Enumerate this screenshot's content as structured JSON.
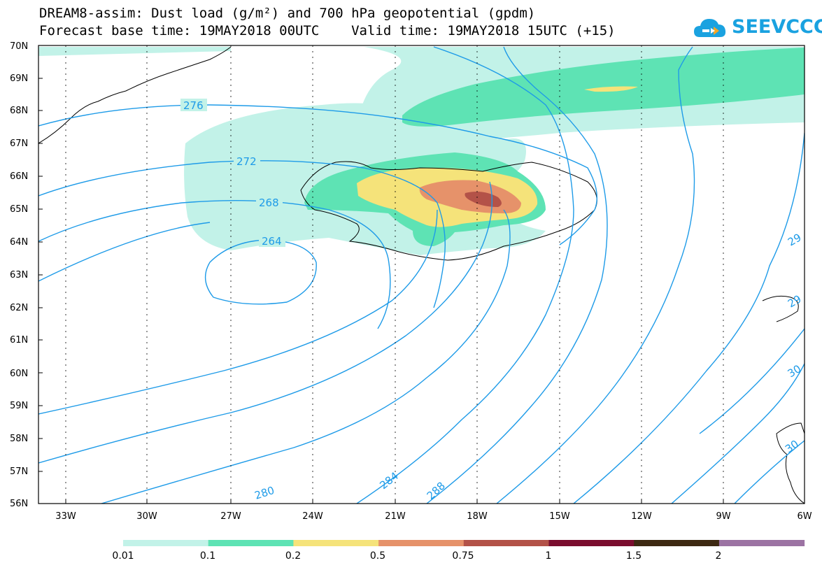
{
  "header": {
    "title_line1": "DREAM8-assim: Dust load (g/m²) and 700 hPa geopotential (gpdm)",
    "title_line2": "Forecast base time: 19MAY2018 00UTC    Valid time: 19MAY2018 15UTC (+15)"
  },
  "logo": {
    "text": "SEEVCCC",
    "icon": "cloud-logo-icon",
    "color": "#1aa2e0"
  },
  "chart_data": {
    "type": "heatmap",
    "title": "DREAM8-assim: Dust load (g/m²) and 700 hPa geopotential (gpdm)",
    "x_axis": {
      "ticks": [
        "33W",
        "30W",
        "27W",
        "24W",
        "21W",
        "18W",
        "15W",
        "12W",
        "9W",
        "6W"
      ],
      "tick_values": [
        -33,
        -30,
        -27,
        -24,
        -21,
        -18,
        -15,
        -12,
        -9,
        -6
      ],
      "range": [
        -34.3,
        -6
      ]
    },
    "y_axis": {
      "ticks": [
        "70N",
        "69N",
        "68N",
        "67N",
        "66N",
        "65N",
        "64N",
        "63N",
        "62N",
        "61N",
        "60N",
        "59N",
        "58N",
        "57N",
        "56N"
      ],
      "tick_values": [
        70,
        69,
        68,
        67,
        66,
        65,
        64,
        63,
        62,
        61,
        60,
        59,
        58,
        57,
        56
      ],
      "range": [
        56,
        70
      ]
    },
    "grid": true,
    "colorbar": {
      "levels": [
        "0.01",
        "0.1",
        "0.2",
        "0.5",
        "0.75",
        "1",
        "1.5",
        "2"
      ],
      "colors": [
        "#c2f2e8",
        "#5ee3b4",
        "#f5e37a",
        "#e6926a",
        "#b35248",
        "#7a0d2e",
        "#3d2912",
        "#9c73a3"
      ]
    },
    "contours": {
      "color": "#1e9be8",
      "visible_labels": [
        "276",
        "272",
        "268",
        "264",
        "280",
        "284",
        "288",
        "29",
        "29",
        "30",
        "30"
      ]
    }
  }
}
